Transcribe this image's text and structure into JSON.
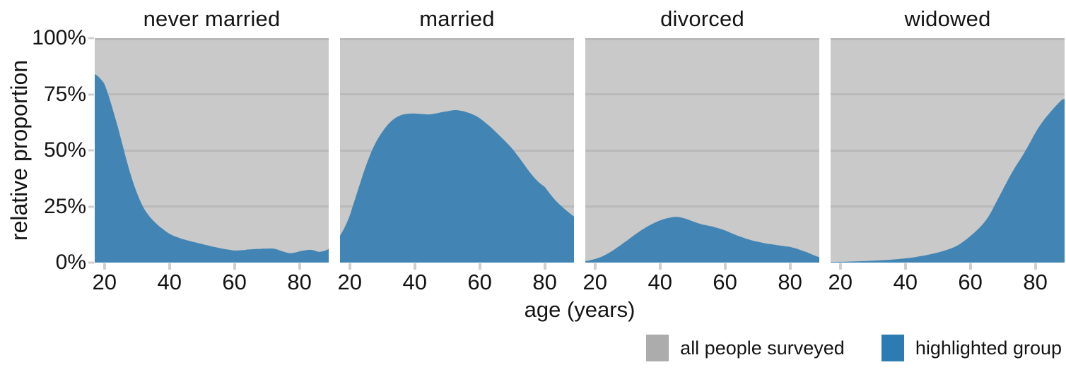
{
  "y_axis": {
    "label": "relative proportion",
    "ticks": [
      {
        "label": "100%",
        "value": 100
      },
      {
        "label": "75%",
        "value": 75
      },
      {
        "label": "50%",
        "value": 50
      },
      {
        "label": "25%",
        "value": 25
      },
      {
        "label": "0%",
        "value": 0
      }
    ]
  },
  "x_axis": {
    "label": "age (years)",
    "ticks": [
      20,
      40,
      60,
      80
    ]
  },
  "legend": {
    "items": [
      {
        "key": "all-people-surveyed",
        "label": "all people surveyed",
        "color": "#acacac"
      },
      {
        "key": "highlighted-group",
        "label": "highlighted group",
        "color": "#2c7bb2"
      }
    ]
  },
  "colors": {
    "panel_background": "#c9c9c9",
    "gridline": "#b9b9b9",
    "highlight_area": "#4285b4",
    "tick_mark": "#cfcfcf",
    "text": "#141414"
  },
  "chart_data": {
    "type": "area",
    "xlabel": "age (years)",
    "ylabel": "relative proportion",
    "xlim": [
      17,
      89
    ],
    "ylim": [
      0,
      100
    ],
    "x_ticks": [
      20,
      40,
      60,
      80
    ],
    "y_ticks_pct": [
      0,
      25,
      50,
      75,
      100
    ],
    "grid": true,
    "legend_position": "bottom-right",
    "background_series": "all people surveyed (100% reference band)",
    "highlight_series": "highlighted group (% of all people surveyed at each age)",
    "facets": [
      {
        "title": "never married",
        "points": [
          [
            17,
            84
          ],
          [
            18,
            83
          ],
          [
            19,
            81.5
          ],
          [
            20,
            79.5
          ],
          [
            21,
            75.5
          ],
          [
            22,
            71
          ],
          [
            23,
            66
          ],
          [
            24,
            61
          ],
          [
            25,
            55.5
          ],
          [
            26,
            50
          ],
          [
            27,
            44.5
          ],
          [
            28,
            39.5
          ],
          [
            29,
            35
          ],
          [
            30,
            31
          ],
          [
            31,
            27.5
          ],
          [
            32,
            24.5
          ],
          [
            33,
            22.2
          ],
          [
            34,
            20.3
          ],
          [
            35,
            18.7
          ],
          [
            36,
            17.3
          ],
          [
            37,
            16
          ],
          [
            38,
            14.9
          ],
          [
            39,
            13.8
          ],
          [
            40,
            12.8
          ],
          [
            41,
            12.1
          ],
          [
            42,
            11.5
          ],
          [
            43,
            11
          ],
          [
            44,
            10.5
          ],
          [
            45,
            10.1
          ],
          [
            46,
            9.7
          ],
          [
            47,
            9.3
          ],
          [
            48,
            9
          ],
          [
            49,
            8.6
          ],
          [
            50,
            8.3
          ],
          [
            51,
            7.9
          ],
          [
            52,
            7.6
          ],
          [
            53,
            7.2
          ],
          [
            54,
            6.9
          ],
          [
            55,
            6.6
          ],
          [
            56,
            6.3
          ],
          [
            57,
            6
          ],
          [
            58,
            5.8
          ],
          [
            59,
            5.6
          ],
          [
            60,
            5.4
          ],
          [
            61,
            5.4
          ],
          [
            62,
            5.5
          ],
          [
            63,
            5.6
          ],
          [
            64,
            5.8
          ],
          [
            65,
            5.9
          ],
          [
            66,
            6
          ],
          [
            67,
            6.1
          ],
          [
            68,
            6.1
          ],
          [
            69,
            6.2
          ],
          [
            70,
            6.2
          ],
          [
            71,
            6.3
          ],
          [
            72,
            6.2
          ],
          [
            73,
            5.9
          ],
          [
            74,
            5.4
          ],
          [
            75,
            4.9
          ],
          [
            76,
            4.5
          ],
          [
            77,
            4.2
          ],
          [
            78,
            4.3
          ],
          [
            79,
            4.6
          ],
          [
            80,
            5
          ],
          [
            81,
            5.3
          ],
          [
            82,
            5.5
          ],
          [
            83,
            5.7
          ],
          [
            84,
            5.6
          ],
          [
            85,
            5.2
          ],
          [
            86,
            4.8
          ],
          [
            87,
            5
          ],
          [
            88,
            5.4
          ],
          [
            89,
            6
          ]
        ]
      },
      {
        "title": "married",
        "points": [
          [
            17,
            12
          ],
          [
            18,
            14.5
          ],
          [
            19,
            17.5
          ],
          [
            20,
            21
          ],
          [
            21,
            25.5
          ],
          [
            22,
            30
          ],
          [
            23,
            34.5
          ],
          [
            24,
            39
          ],
          [
            25,
            43.2
          ],
          [
            26,
            47
          ],
          [
            27,
            50.5
          ],
          [
            28,
            53.5
          ],
          [
            29,
            56
          ],
          [
            30,
            58.2
          ],
          [
            31,
            60.2
          ],
          [
            32,
            61.9
          ],
          [
            33,
            63.3
          ],
          [
            34,
            64.4
          ],
          [
            35,
            65.2
          ],
          [
            36,
            65.8
          ],
          [
            37,
            66.1
          ],
          [
            38,
            66.3
          ],
          [
            39,
            66.4
          ],
          [
            40,
            66.4
          ],
          [
            41,
            66.3
          ],
          [
            42,
            66.2
          ],
          [
            43,
            66.1
          ],
          [
            44,
            66
          ],
          [
            45,
            66.1
          ],
          [
            46,
            66.3
          ],
          [
            47,
            66.6
          ],
          [
            48,
            66.9
          ],
          [
            49,
            67.2
          ],
          [
            50,
            67.4
          ],
          [
            51,
            67.7
          ],
          [
            52,
            67.9
          ],
          [
            53,
            67.9
          ],
          [
            54,
            67.7
          ],
          [
            55,
            67.4
          ],
          [
            56,
            67
          ],
          [
            57,
            66.5
          ],
          [
            58,
            65.9
          ],
          [
            59,
            65.2
          ],
          [
            60,
            64.3
          ],
          [
            61,
            63.2
          ],
          [
            62,
            62
          ],
          [
            63,
            60.8
          ],
          [
            64,
            59.5
          ],
          [
            65,
            58.1
          ],
          [
            66,
            56.7
          ],
          [
            67,
            55.3
          ],
          [
            68,
            53.8
          ],
          [
            69,
            52.3
          ],
          [
            70,
            50.7
          ],
          [
            71,
            48.9
          ],
          [
            72,
            47
          ],
          [
            73,
            45
          ],
          [
            74,
            43
          ],
          [
            75,
            41
          ],
          [
            76,
            39.2
          ],
          [
            77,
            37.5
          ],
          [
            78,
            36
          ],
          [
            79,
            34.8
          ],
          [
            80,
            33.7
          ],
          [
            81,
            31.8
          ],
          [
            82,
            29.9
          ],
          [
            83,
            28.2
          ],
          [
            84,
            26.7
          ],
          [
            85,
            25.3
          ],
          [
            86,
            24
          ],
          [
            87,
            22.8
          ],
          [
            88,
            21.6
          ],
          [
            89,
            20.5
          ]
        ]
      },
      {
        "title": "divorced",
        "points": [
          [
            17,
            0.6
          ],
          [
            18,
            0.9
          ],
          [
            19,
            1.2
          ],
          [
            20,
            1.6
          ],
          [
            21,
            2.1
          ],
          [
            22,
            2.6
          ],
          [
            23,
            3.3
          ],
          [
            24,
            4.1
          ],
          [
            25,
            5
          ],
          [
            26,
            5.9
          ],
          [
            27,
            6.9
          ],
          [
            28,
            7.9
          ],
          [
            29,
            9
          ],
          [
            30,
            10
          ],
          [
            31,
            11.1
          ],
          [
            32,
            12.2
          ],
          [
            33,
            13.2
          ],
          [
            34,
            14.2
          ],
          [
            35,
            15.1
          ],
          [
            36,
            16
          ],
          [
            37,
            16.8
          ],
          [
            38,
            17.5
          ],
          [
            39,
            18.2
          ],
          [
            40,
            18.8
          ],
          [
            41,
            19.3
          ],
          [
            42,
            19.7
          ],
          [
            43,
            20
          ],
          [
            44,
            20.3
          ],
          [
            45,
            20.4
          ],
          [
            46,
            20.2
          ],
          [
            47,
            19.9
          ],
          [
            48,
            19.5
          ],
          [
            49,
            19
          ],
          [
            50,
            18.4
          ],
          [
            51,
            17.9
          ],
          [
            52,
            17.4
          ],
          [
            53,
            17
          ],
          [
            54,
            16.7
          ],
          [
            55,
            16.4
          ],
          [
            56,
            16.1
          ],
          [
            57,
            15.7
          ],
          [
            58,
            15.3
          ],
          [
            59,
            14.8
          ],
          [
            60,
            14.3
          ],
          [
            61,
            13.7
          ],
          [
            62,
            13.1
          ],
          [
            63,
            12.5
          ],
          [
            64,
            11.9
          ],
          [
            65,
            11.4
          ],
          [
            66,
            10.9
          ],
          [
            67,
            10.4
          ],
          [
            68,
            10
          ],
          [
            69,
            9.6
          ],
          [
            70,
            9.3
          ],
          [
            71,
            9
          ],
          [
            72,
            8.7
          ],
          [
            73,
            8.4
          ],
          [
            74,
            8.2
          ],
          [
            75,
            8
          ],
          [
            76,
            7.8
          ],
          [
            77,
            7.6
          ],
          [
            78,
            7.4
          ],
          [
            79,
            7.2
          ],
          [
            80,
            7
          ],
          [
            81,
            6.6
          ],
          [
            82,
            6.2
          ],
          [
            83,
            5.7
          ],
          [
            84,
            5.2
          ],
          [
            85,
            4.7
          ],
          [
            86,
            4.1
          ],
          [
            87,
            3.5
          ],
          [
            88,
            2.9
          ],
          [
            89,
            2.4
          ]
        ]
      },
      {
        "title": "widowed",
        "points": [
          [
            17,
            0.3
          ],
          [
            20,
            0.35
          ],
          [
            22,
            0.4
          ],
          [
            24,
            0.5
          ],
          [
            26,
            0.6
          ],
          [
            28,
            0.7
          ],
          [
            30,
            0.85
          ],
          [
            32,
            1
          ],
          [
            34,
            1.15
          ],
          [
            36,
            1.35
          ],
          [
            38,
            1.6
          ],
          [
            40,
            1.9
          ],
          [
            42,
            2.2
          ],
          [
            44,
            2.7
          ],
          [
            46,
            3.2
          ],
          [
            48,
            3.8
          ],
          [
            50,
            4.5
          ],
          [
            52,
            5.3
          ],
          [
            54,
            6.3
          ],
          [
            56,
            7.6
          ],
          [
            58,
            9.5
          ],
          [
            60,
            11.8
          ],
          [
            62,
            14.4
          ],
          [
            64,
            17.4
          ],
          [
            66,
            21.5
          ],
          [
            68,
            27
          ],
          [
            70,
            32.5
          ],
          [
            72,
            38
          ],
          [
            74,
            43
          ],
          [
            76,
            47.5
          ],
          [
            78,
            52.5
          ],
          [
            80,
            57.8
          ],
          [
            82,
            62.3
          ],
          [
            84,
            66
          ],
          [
            86,
            69.3
          ],
          [
            88,
            72.3
          ],
          [
            89,
            73
          ]
        ]
      }
    ]
  }
}
